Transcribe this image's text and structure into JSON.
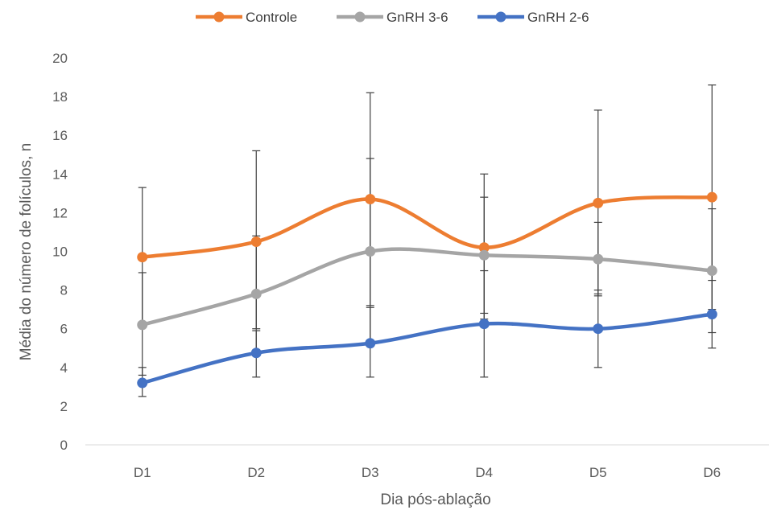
{
  "chart_data": {
    "type": "line",
    "title": "",
    "xlabel": "Dia pós-ablação",
    "ylabel": "Média do número de folículos, n",
    "categories": [
      "D1",
      "D2",
      "D3",
      "D4",
      "D5",
      "D6"
    ],
    "ylim": [
      0,
      20
    ],
    "yticks": [
      "0",
      "2",
      "4",
      "6",
      "8",
      "10",
      "12",
      "14",
      "16",
      "18",
      "20"
    ],
    "grid": false,
    "legend_position": "top",
    "smooth": true,
    "series": [
      {
        "name": "Controle",
        "color": "#ED7D31",
        "values": [
          9.7,
          10.5,
          12.7,
          10.2,
          12.5,
          12.8
        ],
        "error_upper": [
          13.3,
          15.2,
          18.2,
          14.0,
          17.3,
          18.6
        ],
        "error_lower": [
          6.2,
          6.0,
          7.2,
          6.5,
          7.8,
          7.0
        ]
      },
      {
        "name": "GnRH 3-6",
        "color": "#A5A5A5",
        "values": [
          6.2,
          7.8,
          10.0,
          9.8,
          9.6,
          9.0
        ],
        "error_upper": [
          8.9,
          10.8,
          14.8,
          12.8,
          11.5,
          12.2
        ],
        "error_lower": [
          3.6,
          4.6,
          5.2,
          6.8,
          7.7,
          5.8
        ]
      },
      {
        "name": "GnRH 2-6",
        "color": "#4472C4",
        "values": [
          3.2,
          4.75,
          5.25,
          6.25,
          6.0,
          6.75
        ],
        "error_upper": [
          4.0,
          5.9,
          7.1,
          9.0,
          8.0,
          8.5
        ],
        "error_lower": [
          2.5,
          3.5,
          3.5,
          3.5,
          4.0,
          5.0
        ]
      }
    ]
  }
}
